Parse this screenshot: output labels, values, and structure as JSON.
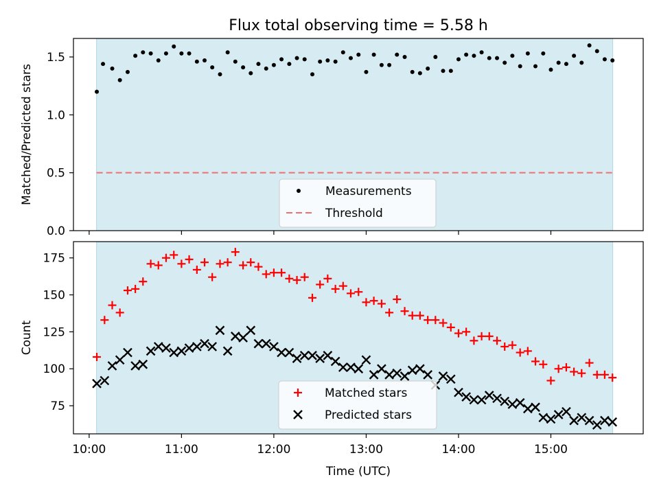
{
  "title": "Flux total observing time = 5.58 h",
  "colors": {
    "shade": "#add8e6",
    "threshold": "#f07070",
    "matched": "#ff0000",
    "predicted": "#000000",
    "measurements": "#000000"
  },
  "chart_data": [
    {
      "type": "scatter",
      "ylabel": "Matched/Predicted stars",
      "xlabel": "",
      "xlim_hours": [
        9.83,
        16.0
      ],
      "ylim": [
        0,
        1.66
      ],
      "yticks": [
        "0.0",
        "0.5",
        "1.0",
        "1.5"
      ],
      "ytick_values": [
        0,
        0.5,
        1.0,
        1.5
      ],
      "shaded_span_hours": [
        10.08,
        15.67
      ],
      "threshold": 0.5,
      "legend": {
        "position": "lower center",
        "entries": [
          "Measurements",
          "Threshold"
        ]
      },
      "series": [
        {
          "name": "Measurements",
          "marker": "dot",
          "x": [
            10.083,
            10.15,
            10.25,
            10.333,
            10.417,
            10.5,
            10.583,
            10.667,
            10.75,
            10.833,
            10.917,
            11.0,
            11.083,
            11.167,
            11.25,
            11.333,
            11.417,
            11.5,
            11.583,
            11.667,
            11.75,
            11.833,
            11.917,
            12.0,
            12.083,
            12.167,
            12.25,
            12.333,
            12.417,
            12.5,
            12.583,
            12.667,
            12.75,
            12.833,
            12.917,
            13.0,
            13.083,
            13.167,
            13.25,
            13.333,
            13.417,
            13.5,
            13.583,
            13.667,
            13.75,
            13.833,
            13.917,
            14.0,
            14.083,
            14.167,
            14.25,
            14.333,
            14.417,
            14.5,
            14.583,
            14.667,
            14.75,
            14.833,
            14.917,
            15.0,
            15.083,
            15.167,
            15.25,
            15.333,
            15.417,
            15.5,
            15.583,
            15.667
          ],
          "y": [
            1.2,
            1.44,
            1.4,
            1.3,
            1.37,
            1.51,
            1.54,
            1.53,
            1.47,
            1.53,
            1.59,
            1.53,
            1.53,
            1.46,
            1.47,
            1.41,
            1.35,
            1.54,
            1.46,
            1.41,
            1.36,
            1.44,
            1.4,
            1.43,
            1.48,
            1.44,
            1.49,
            1.48,
            1.35,
            1.46,
            1.47,
            1.46,
            1.54,
            1.49,
            1.52,
            1.37,
            1.52,
            1.43,
            1.43,
            1.52,
            1.5,
            1.37,
            1.36,
            1.4,
            1.5,
            1.38,
            1.38,
            1.48,
            1.52,
            1.51,
            1.54,
            1.49,
            1.49,
            1.45,
            1.51,
            1.42,
            1.53,
            1.42,
            1.53,
            1.39,
            1.45,
            1.44,
            1.51,
            1.45,
            1.6,
            1.55,
            1.48,
            1.47
          ]
        }
      ]
    },
    {
      "type": "scatter",
      "ylabel": "Count",
      "xlabel": "Time (UTC)",
      "xlim_hours": [
        9.83,
        16.0
      ],
      "ylim": [
        56,
        186
      ],
      "yticks": [
        "75",
        "100",
        "125",
        "150",
        "175"
      ],
      "ytick_values": [
        75,
        100,
        125,
        150,
        175
      ],
      "xticks": [
        "10:00",
        "11:00",
        "12:00",
        "13:00",
        "14:00",
        "15:00"
      ],
      "xtick_values": [
        10,
        11,
        12,
        13,
        14,
        15
      ],
      "shaded_span_hours": [
        10.08,
        15.67
      ],
      "legend": {
        "position": "lower center",
        "entries": [
          "Matched stars",
          "Predicted stars"
        ]
      },
      "series": [
        {
          "name": "Matched stars",
          "marker": "plus",
          "x": [
            10.083,
            10.167,
            10.25,
            10.333,
            10.417,
            10.5,
            10.583,
            10.667,
            10.75,
            10.833,
            10.917,
            11.0,
            11.083,
            11.167,
            11.25,
            11.333,
            11.417,
            11.5,
            11.583,
            11.667,
            11.75,
            11.833,
            11.917,
            12.0,
            12.083,
            12.167,
            12.25,
            12.333,
            12.417,
            12.5,
            12.583,
            12.667,
            12.75,
            12.833,
            12.917,
            13.0,
            13.083,
            13.167,
            13.25,
            13.333,
            13.417,
            13.5,
            13.583,
            13.667,
            13.75,
            13.833,
            13.917,
            14.0,
            14.083,
            14.167,
            14.25,
            14.333,
            14.417,
            14.5,
            14.583,
            14.667,
            14.75,
            14.833,
            14.917,
            15.0,
            15.083,
            15.167,
            15.25,
            15.333,
            15.417,
            15.5,
            15.583,
            15.667
          ],
          "y": [
            108,
            133,
            143,
            138,
            153,
            154,
            159,
            171,
            170,
            175,
            177,
            171,
            174,
            167,
            172,
            162,
            171,
            172,
            179,
            170,
            172,
            169,
            164,
            165,
            165,
            161,
            160,
            162,
            148,
            157,
            161,
            154,
            156,
            151,
            152,
            145,
            146,
            144,
            138,
            147,
            139,
            136,
            136,
            133,
            133,
            131,
            128,
            124,
            125,
            119,
            122,
            122,
            119,
            115,
            116,
            111,
            112,
            105,
            103,
            92,
            100,
            101,
            98,
            97,
            104,
            96,
            96,
            94
          ]
        },
        {
          "name": "Predicted stars",
          "marker": "x",
          "x": [
            10.083,
            10.167,
            10.25,
            10.333,
            10.417,
            10.5,
            10.583,
            10.667,
            10.75,
            10.833,
            10.917,
            11.0,
            11.083,
            11.167,
            11.25,
            11.333,
            11.417,
            11.5,
            11.583,
            11.667,
            11.75,
            11.833,
            11.917,
            12.0,
            12.083,
            12.167,
            12.25,
            12.333,
            12.417,
            12.5,
            12.583,
            12.667,
            12.75,
            12.833,
            12.917,
            13.0,
            13.083,
            13.167,
            13.25,
            13.333,
            13.417,
            13.5,
            13.583,
            13.667,
            13.75,
            13.833,
            13.917,
            14.0,
            14.083,
            14.167,
            14.25,
            14.333,
            14.417,
            14.5,
            14.583,
            14.667,
            14.75,
            14.833,
            14.917,
            15.0,
            15.083,
            15.167,
            15.25,
            15.333,
            15.417,
            15.5,
            15.583,
            15.667
          ],
          "y": [
            90,
            92,
            102,
            106,
            111,
            102,
            103,
            112,
            115,
            114,
            111,
            112,
            114,
            115,
            117,
            115,
            126,
            112,
            122,
            121,
            126,
            117,
            117,
            115,
            111,
            111,
            107,
            109,
            109,
            107,
            109,
            105,
            101,
            101,
            100,
            106,
            96,
            100,
            96,
            97,
            95,
            99,
            100,
            96,
            89,
            95,
            93,
            84,
            81,
            79,
            79,
            82,
            80,
            78,
            76,
            77,
            73,
            74,
            67,
            66,
            69,
            71,
            65,
            67,
            65,
            62,
            65,
            64
          ]
        }
      ]
    }
  ]
}
